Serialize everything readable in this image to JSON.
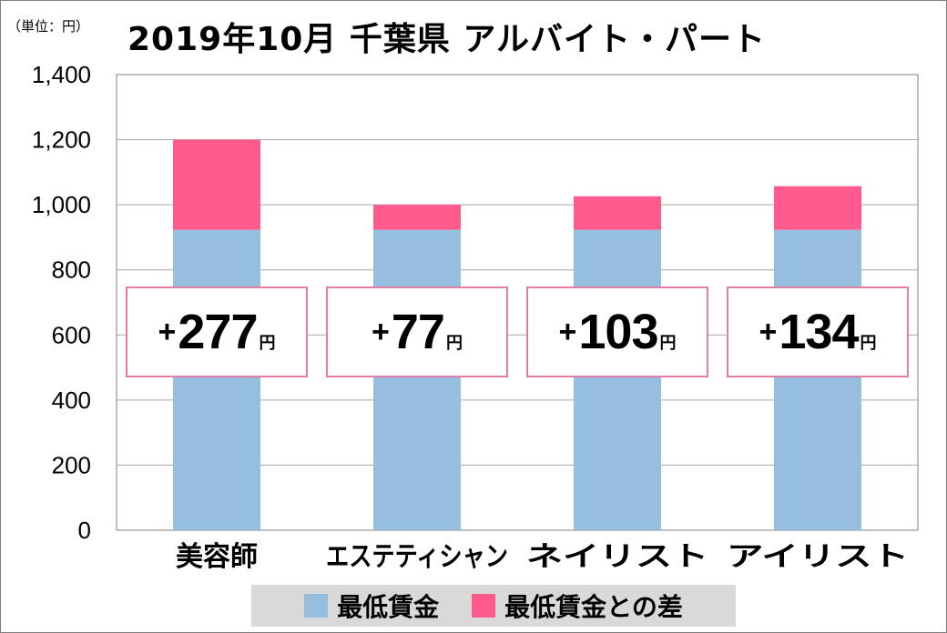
{
  "unit_label": "（単位：円）",
  "title": "2019年10月 千葉県 アルバイト・パート",
  "colors": {
    "base": "#95bedf",
    "diff": "#ff5a8c",
    "badge_border": "#e07fa3",
    "grid": "#a6a6a6"
  },
  "chart_data": {
    "type": "bar",
    "stacked": true,
    "categories": [
      "美容師",
      "エステティシャン",
      "ネイリスト",
      "アイリスト"
    ],
    "series": [
      {
        "name": "最低賃金",
        "values": [
          923,
          923,
          923,
          923
        ]
      },
      {
        "name": "最低賃金との差",
        "values": [
          277,
          77,
          103,
          134
        ]
      }
    ],
    "ylim": [
      0,
      1400
    ],
    "yticks": [
      "0",
      "200",
      "400",
      "600",
      "800",
      "1,000",
      "1,200",
      "1,400"
    ],
    "grid": true,
    "legend": "bottom",
    "badges": [
      {
        "sign": "+",
        "value": "277",
        "unit": "円"
      },
      {
        "sign": "+",
        "value": "77",
        "unit": "円"
      },
      {
        "sign": "+",
        "value": "103",
        "unit": "円"
      },
      {
        "sign": "+",
        "value": "134",
        "unit": "円"
      }
    ]
  },
  "legend": {
    "items": [
      {
        "label": "最低賃金"
      },
      {
        "label": "最低賃金との差"
      }
    ]
  }
}
